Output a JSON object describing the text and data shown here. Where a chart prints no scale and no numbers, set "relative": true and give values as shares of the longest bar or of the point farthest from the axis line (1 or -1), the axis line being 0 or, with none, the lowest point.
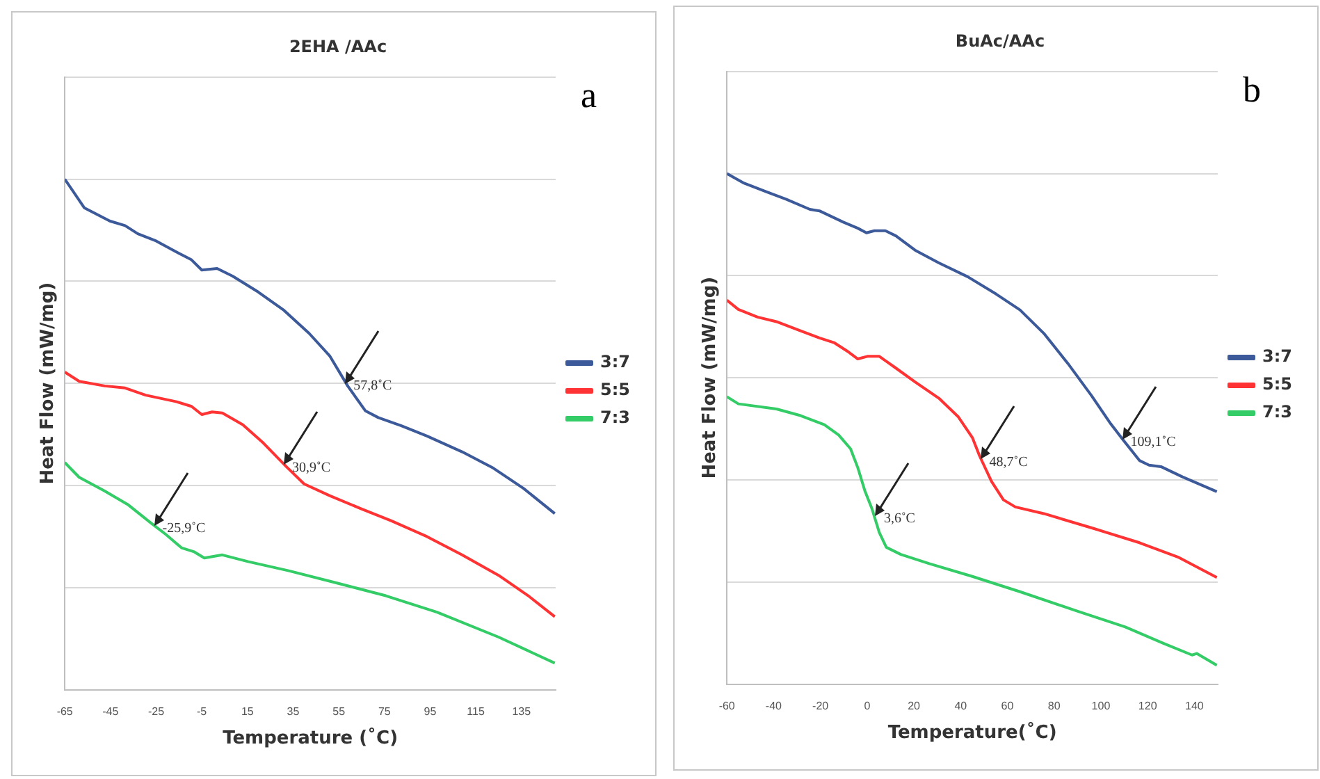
{
  "chart_data": [
    {
      "type": "line",
      "title": "2EHA /AAc",
      "xlabel": "Temperature (˚C)",
      "ylabel": "Heat Flow (mW/mg)",
      "relative": true,
      "xlim": [
        -65,
        150
      ],
      "xticks": [
        -65,
        -45,
        -25,
        -5,
        15,
        35,
        55,
        75,
        95,
        115,
        135
      ],
      "grid": "y",
      "legend": "right",
      "tick_labels": "x",
      "line_style": "solid",
      "marker": "none",
      "annotations": [
        "a",
        {
          "text": "57,8˚C",
          "x": 57.8,
          "y": 0.6
        },
        {
          "text": "30,9˚C",
          "x": 30.9,
          "y": 0.44
        },
        {
          "text": "-25,9˚C",
          "x": -25.9,
          "y": 0.322
        }
      ],
      "series": [
        {
          "name": "3:7",
          "color": "#3c5a9a",
          "x": [
            -65,
            -56.5,
            -45.3,
            -38.6,
            -33,
            -25,
            -16,
            -9.5,
            -5,
            1.7,
            8.5,
            19.7,
            31,
            42,
            51,
            58.9,
            66.7,
            72.3,
            82.4,
            93.6,
            109,
            122.7,
            136,
            149.6
          ],
          "values": [
            1,
            0.944,
            0.918,
            0.909,
            0.893,
            0.879,
            0.857,
            0.842,
            0.822,
            0.825,
            0.81,
            0.779,
            0.743,
            0.698,
            0.654,
            0.595,
            0.546,
            0.533,
            0.517,
            0.497,
            0.466,
            0.434,
            0.394,
            0.345
          ]
        },
        {
          "name": "5:5",
          "color": "#ff3333",
          "x": [
            -65,
            -58.7,
            -47.5,
            -38.6,
            -29.6,
            -16,
            -9.5,
            -5,
            -0.5,
            4,
            13,
            22,
            32,
            39.8,
            51,
            64.5,
            77.9,
            93.6,
            109,
            125,
            138,
            149.6
          ],
          "values": [
            0.622,
            0.604,
            0.595,
            0.591,
            0.577,
            0.564,
            0.555,
            0.539,
            0.544,
            0.542,
            0.519,
            0.483,
            0.437,
            0.403,
            0.38,
            0.355,
            0.331,
            0.3,
            0.264,
            0.224,
            0.184,
            0.143
          ]
        },
        {
          "name": "7:3",
          "color": "#33cc66",
          "x": [
            -65,
            -58.7,
            -47.5,
            -37.5,
            -27.4,
            -20.7,
            -13.9,
            -8.3,
            -3.9,
            4,
            15.2,
            33.1,
            53.3,
            75.6,
            98,
            125,
            149.6
          ],
          "values": [
            0.445,
            0.416,
            0.389,
            0.363,
            0.327,
            0.304,
            0.278,
            0.27,
            0.258,
            0.264,
            0.251,
            0.233,
            0.21,
            0.184,
            0.152,
            0.103,
            0.052
          ]
        }
      ]
    },
    {
      "type": "line",
      "title": "BuAc/AAc",
      "xlabel": "Temperature(˚C)",
      "ylabel": "Heat Flow (mW/mg)",
      "relative": true,
      "xlim": [
        -60,
        150
      ],
      "xticks": [
        -60,
        -40,
        -20,
        0,
        20,
        40,
        60,
        80,
        100,
        120,
        140
      ],
      "grid": "y",
      "legend": "right",
      "tick_labels": "x",
      "line_style": "solid",
      "marker": "none",
      "annotations": [
        "b",
        {
          "text": "109,1˚C",
          "x": 109.1,
          "y": 0.479
        },
        {
          "text": "48,7˚C",
          "x": 48.7,
          "y": 0.44
        },
        {
          "text": "3,6˚C",
          "x": 3.6,
          "y": 0.33
        }
      ],
      "series": [
        {
          "name": "3:7",
          "color": "#3c5a9a",
          "x": [
            -60,
            -53,
            -42.8,
            -34.7,
            -24.5,
            -20.4,
            -10.2,
            -4,
            -0.3,
            3.1,
            7.8,
            12.3,
            20.5,
            30.7,
            43,
            55.2,
            65.4,
            75.6,
            85.9,
            96,
            104.2,
            109.4,
            116.5,
            120.6,
            125.7,
            134.9,
            149.6
          ],
          "values": [
            1,
            0.982,
            0.964,
            0.95,
            0.93,
            0.927,
            0.905,
            0.893,
            0.884,
            0.888,
            0.888,
            0.878,
            0.85,
            0.825,
            0.798,
            0.764,
            0.733,
            0.687,
            0.628,
            0.565,
            0.51,
            0.479,
            0.438,
            0.429,
            0.426,
            0.406,
            0.377
          ]
        },
        {
          "name": "5:5",
          "color": "#ff3333",
          "x": [
            -60,
            -55.1,
            -46.9,
            -38.8,
            -28.5,
            -20.4,
            -14.2,
            -8.1,
            -4,
            0.1,
            5.2,
            12.3,
            20.5,
            30.7,
            38.9,
            45,
            48.1,
            53.2,
            58.3,
            63.4,
            75.6,
            96.1,
            116.5,
            132.9,
            149.6
          ],
          "values": [
            0.752,
            0.734,
            0.719,
            0.71,
            0.692,
            0.678,
            0.669,
            0.651,
            0.637,
            0.642,
            0.642,
            0.619,
            0.592,
            0.56,
            0.524,
            0.483,
            0.447,
            0.397,
            0.361,
            0.347,
            0.334,
            0.306,
            0.277,
            0.249,
            0.209
          ]
        },
        {
          "name": "7:3",
          "color": "#33cc66",
          "x": [
            -60,
            -55.1,
            -38.8,
            -28.5,
            -18.3,
            -12.2,
            -7.1,
            -4,
            -1,
            2.1,
            5.2,
            8.2,
            14.4,
            26.6,
            45,
            65.4,
            89.9,
            110.4,
            126.7,
            139,
            141,
            149.6
          ],
          "values": [
            0.563,
            0.549,
            0.539,
            0.526,
            0.508,
            0.488,
            0.461,
            0.424,
            0.379,
            0.343,
            0.297,
            0.268,
            0.254,
            0.236,
            0.211,
            0.181,
            0.143,
            0.112,
            0.08,
            0.057,
            0.06,
            0.037
          ]
        }
      ]
    }
  ]
}
